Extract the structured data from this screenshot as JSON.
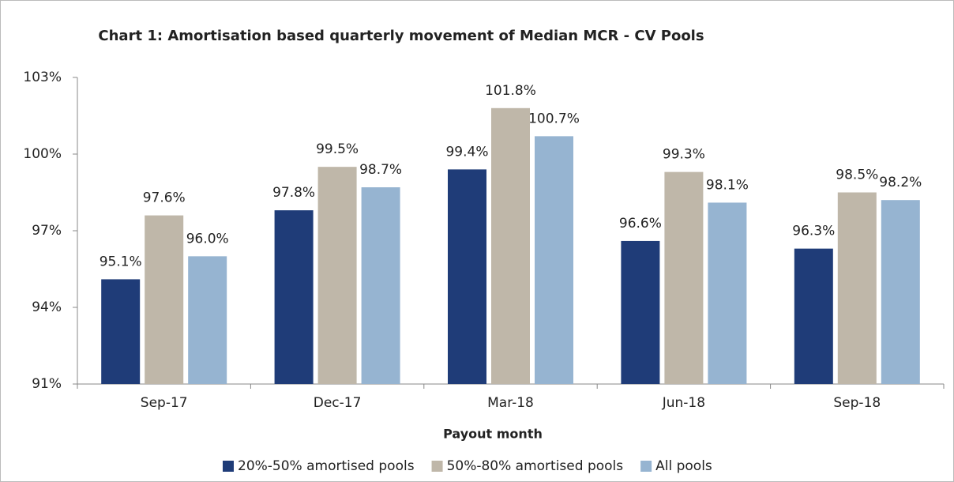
{
  "chart_data": {
    "type": "bar",
    "title": "Chart 1: Amortisation based quarterly movement of Median MCR - CV Pools",
    "x_label": "Payout month",
    "categories": [
      "Sep-17",
      "Dec-17",
      "Mar-18",
      "Jun-18",
      "Sep-18"
    ],
    "series": [
      {
        "name": "20%-50% amortised pools",
        "color": "#1f3c78",
        "values": [
          95.1,
          97.8,
          99.4,
          96.6,
          96.3
        ],
        "value_labels": [
          "95.1%",
          "97.8%",
          "99.4%",
          "96.6%",
          "96.3%"
        ]
      },
      {
        "name": "50%-80% amortised pools",
        "color": "#bfb7a9",
        "values": [
          97.6,
          99.5,
          101.8,
          99.3,
          98.5
        ],
        "value_labels": [
          "97.6%",
          "99.5%",
          "101.8%",
          "99.3%",
          "98.5%"
        ]
      },
      {
        "name": "All pools",
        "color": "#96b4d1",
        "values": [
          96.0,
          98.7,
          100.7,
          98.1,
          98.2
        ],
        "value_labels": [
          "96.0%",
          "98.7%",
          "100.7%",
          "98.1%",
          "98.2%"
        ]
      }
    ],
    "ylim": [
      91,
      103
    ],
    "yticks": [
      {
        "value": 91,
        "label": "91%"
      },
      {
        "value": 94,
        "label": "94%"
      },
      {
        "value": 97,
        "label": "97%"
      },
      {
        "value": 100,
        "label": "100%"
      },
      {
        "value": 103,
        "label": "103%"
      }
    ],
    "legend": "bottom"
  }
}
